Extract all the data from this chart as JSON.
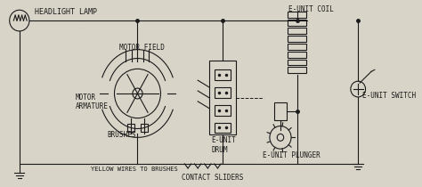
{
  "bg_color": "#d8d4c8",
  "line_color": "#1a1a1a",
  "labels": {
    "headlight_lamp": "HEADLIGHT LAMP",
    "motor_field": "MOTOR FIELD",
    "motor_armature": "MOTOR\nARMATURE",
    "brushes": "BRUSHES",
    "yellow_wires": "YELLOW WIRES TO BRUSHES",
    "e_unit_coil": "E-UNIT COIL",
    "e_unit_drum": "E-UNIT\nDRUM",
    "e_unit_plunger": "E-UNIT PLUNGER",
    "e_unit_switch": "E-UNIT SWITCH",
    "contact_sliders": "CONTACT SLIDERS"
  },
  "figsize": [
    4.74,
    2.1
  ],
  "dpi": 100
}
